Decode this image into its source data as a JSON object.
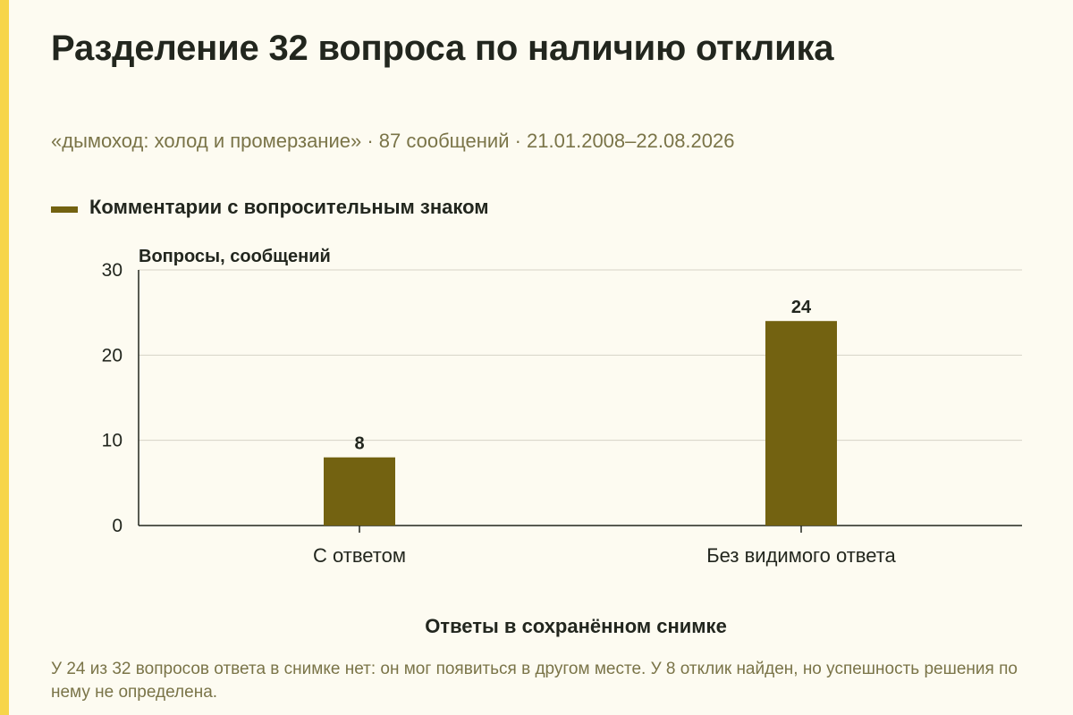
{
  "title": "Разделение 32 вопроса по наличию отклика",
  "subtitle": "«дымоход: холод и промерзание» · 87 сообщений · 21.01.2008–22.08.2026",
  "caption": "У 24 из 32 вопросов ответа в снимке нет: он мог появиться в другом месте. У 8 отклик найден, но успешность решения по нему не определена.",
  "colors": {
    "bar": "#736211",
    "accent_stripe": "#f7d54a",
    "background": "#fdfbf1"
  },
  "chart_data": {
    "type": "bar",
    "categories": [
      "С ответом",
      "Без видимого ответа"
    ],
    "series": [
      {
        "name": "Комментарии с вопросительным знаком",
        "values": [
          8,
          24
        ]
      }
    ],
    "xlabel": "Ответы в сохранённом снимке",
    "ylabel": "Вопросы, сообщений",
    "ylim": [
      0,
      30
    ],
    "yticks": [
      0,
      10,
      20,
      30
    ],
    "data_labels": true,
    "grid": true,
    "legend_position": "top-left"
  }
}
